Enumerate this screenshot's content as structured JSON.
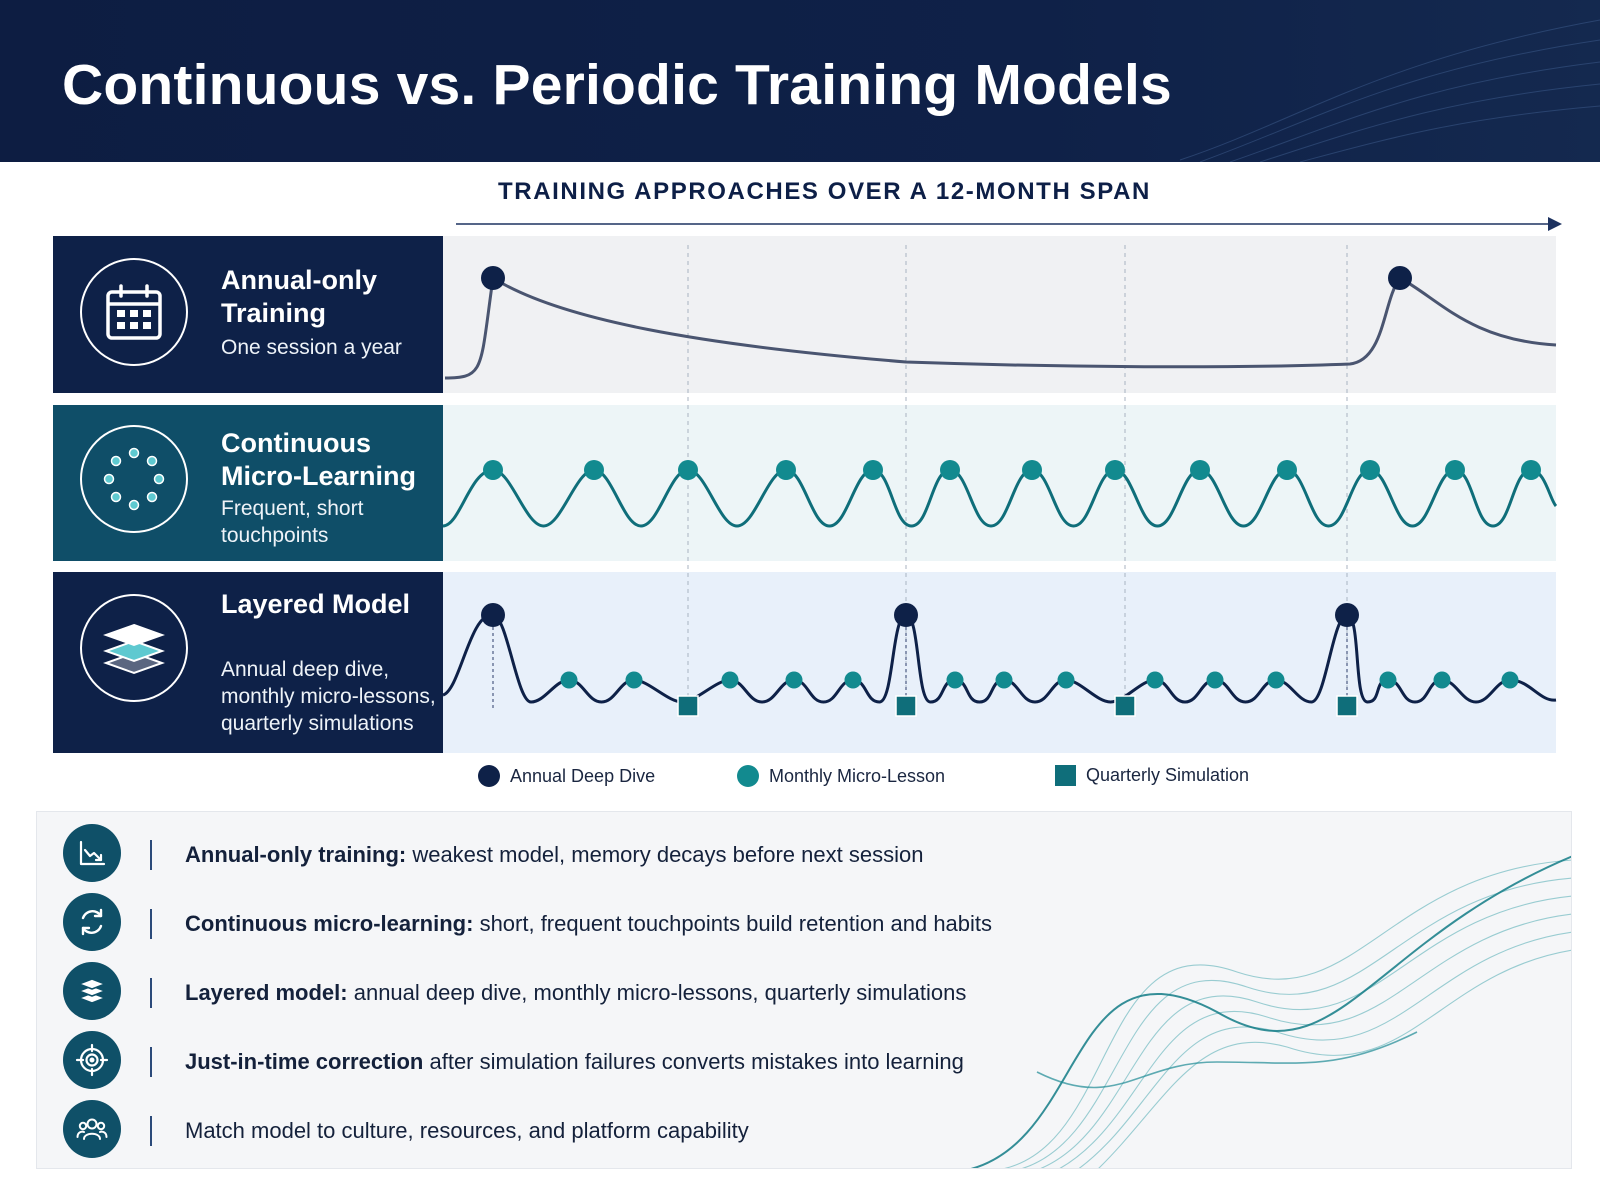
{
  "header": {
    "title": "Continuous vs. Periodic Training Models"
  },
  "diagram": {
    "span_title": "TRAINING  APPROACHES OVER A 12-MONTH SPAN",
    "rows": [
      {
        "title": "Annual-only Training",
        "subtitle": "One session a year",
        "icon": "calendar-icon"
      },
      {
        "title": "Continuous Micro-Learning",
        "subtitle": "Frequent, short touchpoints",
        "icon": "dotted-circle-icon"
      },
      {
        "title": "Layered Model",
        "subtitle": "Annual deep dive, monthly micro-lessons, quarterly simulations",
        "icon": "layers-icon"
      }
    ],
    "legend": {
      "annual": "Annual Deep Dive",
      "monthly": "Monthly Micro-Lesson",
      "quarterly": "Quarterly Simulation"
    },
    "colors": {
      "navy": "#0e2148",
      "teal": "#0f6e7a",
      "teal_dot": "#128a8f",
      "line_gray": "#4a5570"
    }
  },
  "summary": {
    "items": [
      {
        "bold": "Annual-only training:",
        "text": " weakest model, memory decays before next session",
        "icon": "declining-chart-icon"
      },
      {
        "bold": "Continuous micro-learning:",
        "text": " short, frequent touchpoints build retention and habits",
        "icon": "cycle-arrows-icon"
      },
      {
        "bold": "Layered model:",
        "text": " annual deep dive, monthly micro-lessons, quarterly simulations",
        "icon": "layers-icon"
      },
      {
        "bold": "Just-in-time correction",
        "text": " after simulation failures converts mistakes into learning",
        "icon": "target-icon"
      },
      {
        "bold": "",
        "text": "Match model to culture, resources, and platform capability",
        "icon": "people-group-icon"
      }
    ]
  }
}
